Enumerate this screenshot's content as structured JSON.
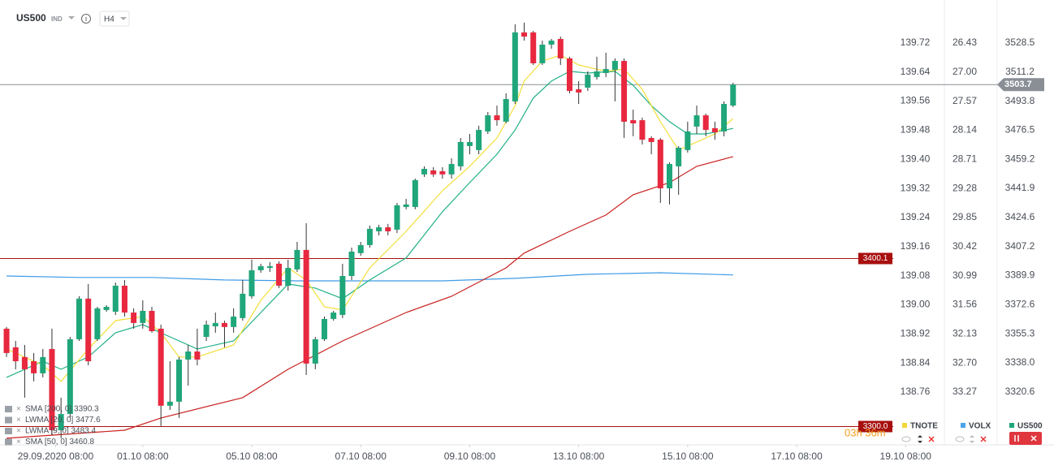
{
  "header": {
    "symbol": "US500",
    "market": "IND",
    "timeframe": "H4"
  },
  "countdown": "03h 36m",
  "instruments": [
    "TNOTE",
    "VOLX",
    "US500"
  ],
  "chart_data": {
    "type": "candlestick",
    "xlim": [
      -0.72,
      103.0
    ],
    "xticks": [
      {
        "value": 5.4,
        "label": "29.09.2020 08:00"
      },
      {
        "value": 15,
        "label": "01.10 08:00"
      },
      {
        "value": 27,
        "label": "05.10 08:00"
      },
      {
        "value": 39,
        "label": "07.10 08:00"
      },
      {
        "value": 51,
        "label": "09.10 08:00"
      },
      {
        "value": 63,
        "label": "13.10 08:00"
      },
      {
        "value": 75,
        "label": "15.10 08:00"
      },
      {
        "value": 87,
        "label": "17.10 08:00"
      },
      {
        "value": 99,
        "label": "19.10 08:00"
      }
    ],
    "ylim": [
      3289.1,
      3554.1
    ],
    "yticks": [
      3528.5,
      3511.2,
      3493.8,
      3476.5,
      3459.2,
      3441.9,
      3424.6,
      3407.2,
      3389.9,
      3372.6,
      3355.3,
      {
        "value": 3338,
        "label": "3338.0"
      },
      3320.6
    ],
    "tnote_axis": {
      "ylim": [
        138.615,
        139.838
      ],
      "yticks": [
        139.72,
        139.64,
        139.56,
        139.48,
        {
          "value": 139.4,
          "label": "139.40"
        },
        139.32,
        139.24,
        139.16,
        139.08,
        {
          "value": 139,
          "label": "139.00"
        },
        138.92,
        138.84,
        138.76
      ]
    },
    "volx_axis": {
      "ylim": [
        34.304,
        25.587
      ],
      "yticks": [
        26.43,
        {
          "value": 27,
          "label": "27.00"
        },
        27.57,
        28.14,
        28.71,
        29.28,
        29.85,
        30.42,
        30.99,
        31.56,
        32.13,
        {
          "value": 32.7,
          "label": "32.70"
        },
        33.27
      ]
    },
    "up_color": "#1fa67a",
    "down_color": "#e8283f",
    "open": [
      3358.3,
      3347.2,
      3341.4,
      3338.9,
      3331.7,
      3346.2,
      3297.8,
      3307.5,
      3352.0,
      3376.2,
      3352.0,
      3369.4,
      3368.4,
      3383.9,
      3367.9,
      3361.7,
      3368.9,
      3358.3,
      3312.4,
      3314.8,
      3339.9,
      3344.7,
      3353.4,
      3359.7,
      3361.7,
      3359.3,
      3364.6,
      3377.6,
      3393.1,
      3394.5,
      3397.0,
      3383.9,
      3393.6,
      3405.2,
      3337.5,
      3352.0,
      3364.1,
      3366.5,
      3389.7,
      3403.3,
      3408.1,
      3416.3,
      3418.7,
      3417.3,
      3430.8,
      3430.8,
      3450.2,
      3452.6,
      3452.1,
      3450.2,
      3455.0,
      3467.1,
      3464.7,
      3475.8,
      3485.4,
      3481.6,
      3493.7,
      3534.8,
      3534.8,
      3516.4,
      3527.5,
      3530.9,
      3519.3,
      3500.9,
      3501.9,
      3508.2,
      3510.6,
      3512.5,
      3517.8,
      3482.5,
      3482.5,
      3471.9,
      3470.9,
      3441.9,
      3455.0,
      3464.7,
      3478.7,
      3485.4,
      3477.7,
      3475.8,
      3491.2
    ],
    "high": [
      3359.3,
      3351.0,
      3348.6,
      3343.8,
      3346.2,
      3358.3,
      3317.2,
      3353.4,
      3377.6,
      3384.9,
      3371.3,
      3372.3,
      3385.8,
      3387.3,
      3370.4,
      3375.2,
      3371.3,
      3360.7,
      3338.9,
      3341.4,
      3348.6,
      3358.3,
      3363.1,
      3367.9,
      3363.1,
      3370.4,
      3387.3,
      3399.4,
      3397.0,
      3397.9,
      3398.4,
      3399.4,
      3410.0,
      3421.1,
      3353.4,
      3365.5,
      3368.9,
      3397.0,
      3406.6,
      3410.0,
      3419.7,
      3420.2,
      3420.7,
      3433.2,
      3435.6,
      3447.7,
      3455.0,
      3454.5,
      3454.5,
      3459.8,
      3471.9,
      3474.3,
      3479.2,
      3487.4,
      3491.2,
      3498.5,
      3539.6,
      3540.6,
      3535.7,
      3529.9,
      3530.9,
      3532.3,
      3520.3,
      3505.8,
      3511.6,
      3520.3,
      3522.7,
      3519.3,
      3519.3,
      3488.8,
      3484.0,
      3472.9,
      3471.9,
      3457.4,
      3467.1,
      3481.6,
      3491.2,
      3486.4,
      3481.6,
      3493.7,
      3504.8
    ],
    "low": [
      3341.4,
      3334.1,
      3317.2,
      3326.9,
      3329.3,
      3295.4,
      3293.0,
      3305.1,
      3351.0,
      3336.5,
      3351.0,
      3368.4,
      3366.5,
      3365.5,
      3358.3,
      3358.3,
      3355.9,
      3300.3,
      3309.9,
      3305.1,
      3324.4,
      3336.5,
      3351.0,
      3355.9,
      3347.2,
      3355.9,
      3363.1,
      3376.2,
      3391.6,
      3392.1,
      3382.5,
      3381.0,
      3392.1,
      3330.7,
      3334.1,
      3351.0,
      3363.1,
      3364.6,
      3387.3,
      3401.8,
      3406.6,
      3413.9,
      3413.9,
      3415.3,
      3429.4,
      3429.4,
      3448.7,
      3448.7,
      3447.7,
      3447.7,
      3452.6,
      3462.2,
      3462.2,
      3474.3,
      3479.2,
      3480.6,
      3492.2,
      3529.9,
      3515.4,
      3515.4,
      3525.1,
      3515.4,
      3498.5,
      3492.2,
      3499.9,
      3506.7,
      3508.2,
      3493.7,
      3471.9,
      3472.9,
      3468.0,
      3462.2,
      3433.2,
      3432.3,
      3438.1,
      3463.2,
      3474.3,
      3472.9,
      3470.9,
      3472.9,
      3490.3
    ],
    "close": [
      3343.8,
      3338.9,
      3334.1,
      3331.7,
      3341.4,
      3297.8,
      3307.5,
      3352.0,
      3376.2,
      3338.9,
      3370.4,
      3371.3,
      3383.9,
      3367.9,
      3361.7,
      3368.9,
      3356.8,
      3312.4,
      3314.8,
      3339.9,
      3344.7,
      3339.9,
      3360.7,
      3361.7,
      3359.3,
      3365.5,
      3379.1,
      3393.1,
      3395.5,
      3395.5,
      3383.9,
      3394.5,
      3405.2,
      3337.5,
      3352.0,
      3364.1,
      3367.9,
      3389.7,
      3404.2,
      3408.1,
      3417.8,
      3418.7,
      3416.3,
      3431.8,
      3432.3,
      3446.8,
      3453.5,
      3450.2,
      3450.2,
      3456.4,
      3469.5,
      3469.5,
      3476.7,
      3485.4,
      3482.5,
      3495.1,
      3534.8,
      3532.3,
      3516.4,
      3527.5,
      3529.9,
      3519.3,
      3499.9,
      3499.0,
      3509.6,
      3511.6,
      3513.0,
      3517.8,
      3481.6,
      3480.6,
      3470.9,
      3469.5,
      3441.9,
      3456.4,
      3466.1,
      3475.8,
      3485.4,
      3476.7,
      3475.3,
      3492.2,
      3503.7
    ],
    "last_price": 3503.7,
    "last_price_color": "#8a8f96",
    "levels": [
      {
        "value": 3400.1,
        "color": "#a80f0f"
      },
      {
        "value": {
          "value": 3300,
          "label": "3300.0"
        },
        "color": "#a80f0f"
      }
    ],
    "series": [
      {
        "name": "SMA [200, 0] 3390.3",
        "color": "#3f9be6",
        "x": [
          0,
          8,
          16,
          24,
          32,
          40,
          48,
          56,
          64,
          72,
          80
        ],
        "values": [
          3389.7,
          3388.8,
          3388.8,
          3387.3,
          3386.8,
          3386.8,
          3386.8,
          3388.3,
          3390.7,
          3391.6,
          3390.3
        ]
      },
      {
        "name": "LWMA [20, 0] 3477.6",
        "color": "#21b087",
        "x": [
          0,
          4,
          6,
          9,
          12,
          15,
          18,
          21,
          25,
          28,
          31,
          34,
          37,
          40,
          44,
          48,
          51,
          54,
          56,
          58,
          60,
          62,
          64,
          67,
          69,
          71,
          73,
          75,
          77,
          80
        ],
        "values": [
          3329.3,
          3338.9,
          3334.1,
          3341.4,
          3355.9,
          3360.7,
          3353.4,
          3346.2,
          3351.0,
          3367.9,
          3384.9,
          3382.5,
          3376.2,
          3387.3,
          3400.4,
          3428.0,
          3445.3,
          3462.2,
          3476.7,
          3495.7,
          3505.8,
          3511.6,
          3510.6,
          3511.6,
          3503.3,
          3491.2,
          3481.6,
          3474.3,
          3474.3,
          3477.6
        ]
      },
      {
        "name": "LWMA [9, 0] 3483.4",
        "color": "#f2df3a",
        "x": [
          0,
          4,
          6,
          9,
          12,
          15,
          17,
          19,
          21,
          25,
          28,
          31,
          33,
          35,
          37,
          40,
          44,
          48,
          51,
          54,
          56,
          57,
          59,
          61,
          63,
          66,
          68,
          70,
          72,
          74,
          76,
          78,
          80
        ],
        "values": [
          3346.2,
          3336.5,
          3326.9,
          3346.2,
          3363.1,
          3365.5,
          3355.9,
          3341.4,
          3341.4,
          3348.6,
          3375.2,
          3394.5,
          3387.3,
          3371.3,
          3369.4,
          3394.5,
          3416.3,
          3440.5,
          3455.0,
          3471.9,
          3491.2,
          3505.8,
          3517.8,
          3521.2,
          3515.4,
          3511.6,
          3513.0,
          3500.9,
          3481.6,
          3464.7,
          3469.5,
          3474.3,
          3483.4
        ]
      },
      {
        "name": "SMA [50, 0] 3460.8",
        "color": "#c8201e",
        "x": [
          0,
          13,
          17,
          26,
          31,
          37,
          44,
          49,
          55,
          57,
          62,
          66,
          69,
          73,
          76,
          80
        ],
        "values": [
          3293.0,
          3297.8,
          3305.1,
          3317.2,
          3334.1,
          3351.0,
          3367.9,
          3377.6,
          3394.5,
          3403.3,
          3416.3,
          3426.0,
          3438.1,
          3445.3,
          3455.0,
          3460.8
        ]
      }
    ]
  }
}
